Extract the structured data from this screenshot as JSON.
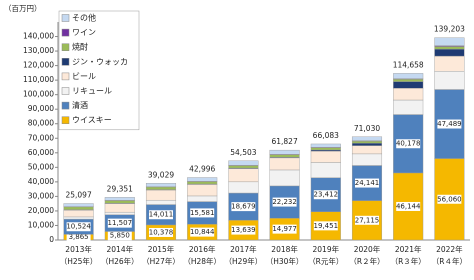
{
  "chart_data": {
    "type": "stacked-bar",
    "unit_label": "（百万円）",
    "categories": [
      "2013年",
      "2014年",
      "2015年",
      "2016年",
      "2017年",
      "2018年",
      "2019年",
      "2020年",
      "2021年",
      "2022年"
    ],
    "category_sublabels": [
      "（H25年）",
      "（H26年）",
      "（H27年）",
      "（H28年）",
      "（H29年）",
      "（H30年）",
      "（R元年）",
      "（R２年）",
      "（R３年）",
      "（R４年）"
    ],
    "ylim": [
      0,
      150000
    ],
    "yticks": [
      0,
      {
        "value": 10000,
        "label": "10,000"
      },
      {
        "value": 20000,
        "label": "20,000"
      },
      {
        "value": 30000,
        "label": "30,000"
      },
      {
        "value": 40000,
        "label": "40,000"
      },
      {
        "value": 50000,
        "label": "50,000"
      },
      {
        "value": 60000,
        "label": "60,000"
      },
      {
        "value": 70000,
        "label": "70,000"
      },
      {
        "value": 80000,
        "label": "80,000"
      },
      {
        "value": 90000,
        "label": "90,000"
      },
      {
        "value": 100000,
        "label": "100,000"
      },
      {
        "value": 110000,
        "label": "110,000"
      },
      {
        "value": 120000,
        "label": "120,000"
      },
      {
        "value": 130000,
        "label": "130,000"
      },
      {
        "value": 140000,
        "label": "140,000"
      }
    ],
    "series": [
      {
        "name": "ウイスキー",
        "color": "#f5b800",
        "values": [
          3865,
          5850,
          10378,
          10844,
          13639,
          14977,
          19451,
          27115,
          46144,
          56060
        ],
        "value_labels": [
          "3,865",
          "5,850",
          "10,378",
          "10,844",
          "13,639",
          "14,977",
          "19,451",
          "27,115",
          "46,144",
          "56,060"
        ]
      },
      {
        "name": "清酒",
        "color": "#4f81bd",
        "values": [
          10524,
          11507,
          14011,
          15581,
          18679,
          22232,
          23412,
          24141,
          40178,
          47489
        ],
        "value_labels": [
          "10,524",
          "11,507",
          "14,011",
          "15,581",
          "18,679",
          "22,232",
          "23,412",
          "24,141",
          "40,178",
          "47,489"
        ]
      },
      {
        "name": "リキュール",
        "color": "#f2f2f2",
        "values": [
          1500,
          1800,
          3000,
          3900,
          7700,
          11000,
          10500,
          8000,
          10000,
          12600
        ]
      },
      {
        "name": "ビール",
        "color": "#fde9d9",
        "values": [
          4700,
          5900,
          7000,
          7900,
          9100,
          8300,
          7800,
          5700,
          8100,
          10400
        ]
      },
      {
        "name": "ジン・ウォッカ",
        "color": "#1f3b73",
        "values": [
          300,
          300,
          300,
          300,
          400,
          500,
          800,
          1700,
          4600,
          4800
        ]
      },
      {
        "name": "焼酎",
        "color": "#9bbb59",
        "values": [
          1900,
          1800,
          1800,
          1700,
          1700,
          1700,
          1600,
          1400,
          1600,
          1800
        ]
      },
      {
        "name": "ワイン",
        "color": "#7030a0",
        "values": [
          200,
          200,
          200,
          200,
          200,
          300,
          300,
          300,
          400,
          600
        ]
      },
      {
        "name": "その他",
        "color": "#c5d9f1",
        "values": [
          2108,
          1994,
          2340,
          2571,
          3085,
          2818,
          2220,
          2674,
          3636,
          5454
        ]
      }
    ],
    "totals": [
      25097,
      29351,
      39029,
      42996,
      54503,
      61827,
      66083,
      71030,
      114658,
      139203
    ],
    "total_labels": [
      "25,097",
      "29,351",
      "39,029",
      "42,996",
      "54,503",
      "61,827",
      "66,083",
      "71,030",
      "114,658",
      "139,203"
    ]
  }
}
